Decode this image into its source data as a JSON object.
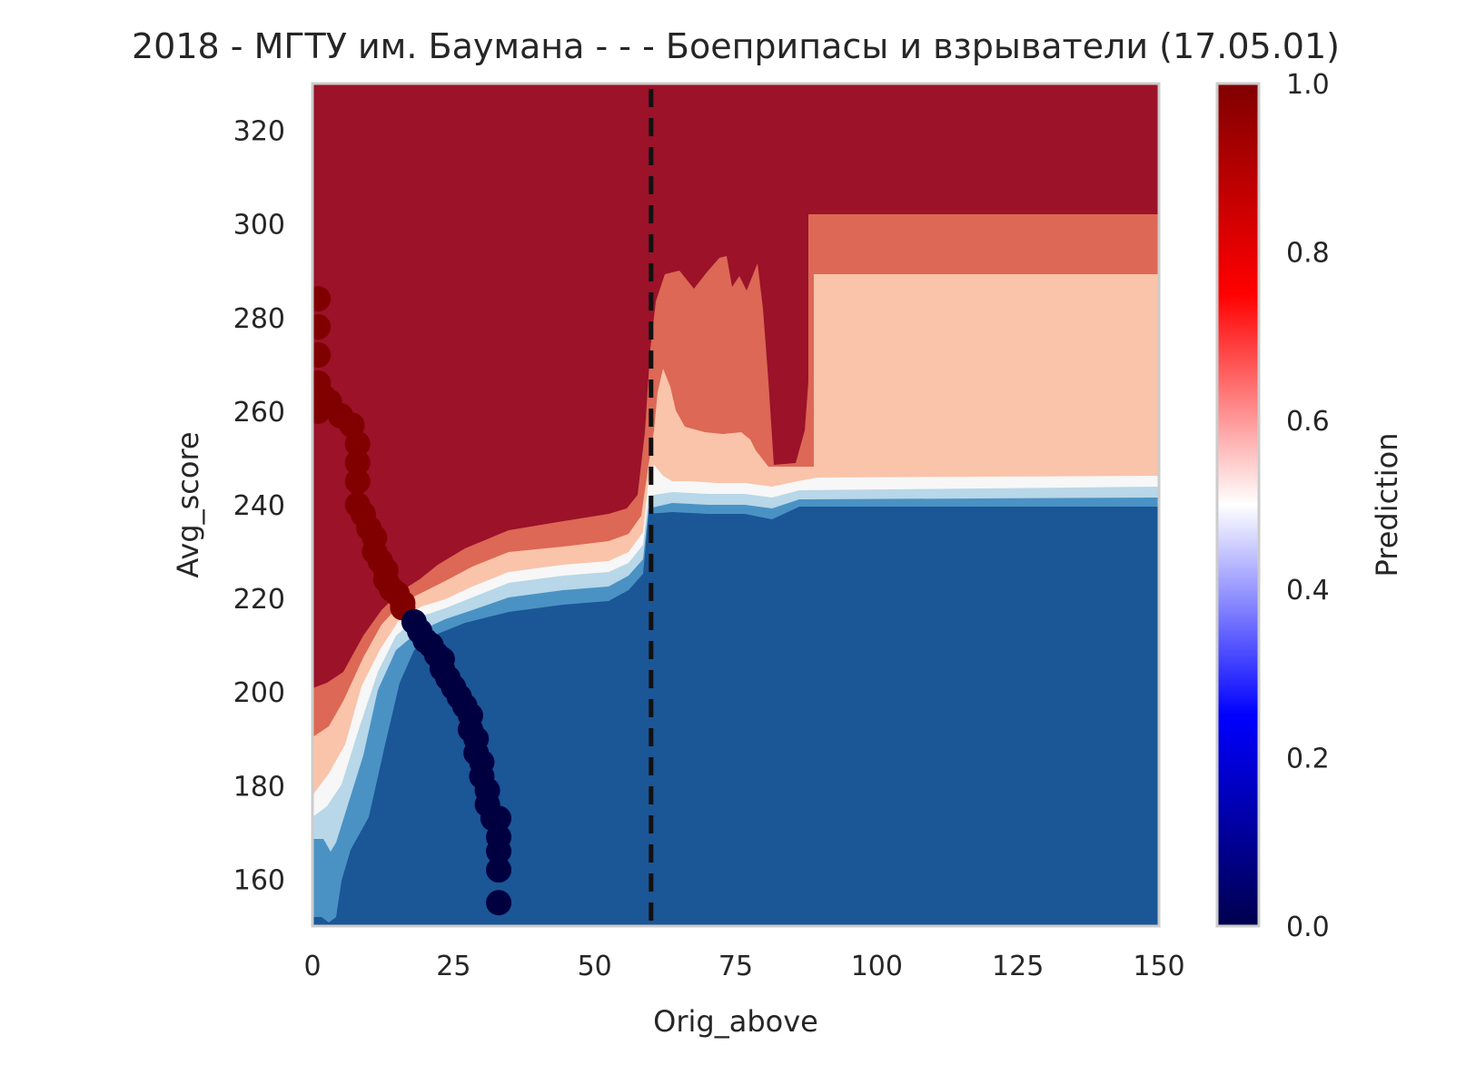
{
  "chart_data": {
    "type": "heatmap",
    "title": "2018 - МГТУ им. Баумана - - - Боеприпасы и взрыватели (17.05.01)",
    "xlabel": "Orig_above",
    "ylabel": "Avg_score",
    "xlim": [
      0,
      150
    ],
    "ylim": [
      150,
      330
    ],
    "xticks": [
      "0",
      "25",
      "50",
      "75",
      "100",
      "125",
      "150"
    ],
    "yticks": [
      "160",
      "180",
      "200",
      "220",
      "240",
      "260",
      "280",
      "300",
      "320"
    ],
    "grid": false,
    "colorbar": {
      "label": "Prediction",
      "range": [
        0,
        1
      ],
      "ticks": [
        "0.0",
        "0.2",
        "0.4",
        "0.6",
        "0.8",
        "1.0"
      ]
    },
    "threshold_line": {
      "x": 60,
      "style": "dashed"
    },
    "contour_colors": {
      "strong_negative": "#1b5696",
      "negative": "#4a92c4",
      "weak_negative": "#b8d7e8",
      "neutral": "#f7f7f7",
      "weak_positive": "#f9c4aa",
      "positive": "#dc6855",
      "strong_positive": "#9b1229"
    },
    "series": [
      {
        "class": 1,
        "color": "#800000",
        "points": [
          [
            1,
            284
          ],
          [
            1,
            278
          ],
          [
            1,
            272
          ],
          [
            1,
            266
          ],
          [
            1,
            260
          ],
          [
            2,
            263
          ],
          [
            3,
            262
          ],
          [
            5,
            259
          ],
          [
            7,
            257
          ],
          [
            8,
            253
          ],
          [
            8,
            249
          ],
          [
            8,
            245
          ],
          [
            8,
            240
          ],
          [
            9,
            238
          ],
          [
            10,
            235
          ],
          [
            11,
            233
          ],
          [
            11,
            230
          ],
          [
            12,
            228
          ],
          [
            13,
            226
          ],
          [
            13,
            224
          ],
          [
            14,
            222
          ],
          [
            15,
            221
          ],
          [
            16,
            219
          ],
          [
            16,
            218
          ]
        ]
      },
      {
        "class": 0,
        "color": "#000040",
        "points": [
          [
            18,
            215
          ],
          [
            19,
            213
          ],
          [
            20,
            211
          ],
          [
            21,
            210
          ],
          [
            22,
            208
          ],
          [
            23,
            207
          ],
          [
            23,
            205
          ],
          [
            24,
            203
          ],
          [
            25,
            201
          ],
          [
            26,
            199
          ],
          [
            27,
            197
          ],
          [
            28,
            195
          ],
          [
            28,
            192
          ],
          [
            29,
            190
          ],
          [
            29,
            187
          ],
          [
            30,
            185
          ],
          [
            30,
            182
          ],
          [
            31,
            179
          ],
          [
            31,
            176
          ],
          [
            32,
            173
          ],
          [
            33,
            173
          ],
          [
            33,
            169
          ],
          [
            33,
            166
          ],
          [
            33,
            162
          ],
          [
            33,
            155
          ]
        ]
      }
    ]
  }
}
